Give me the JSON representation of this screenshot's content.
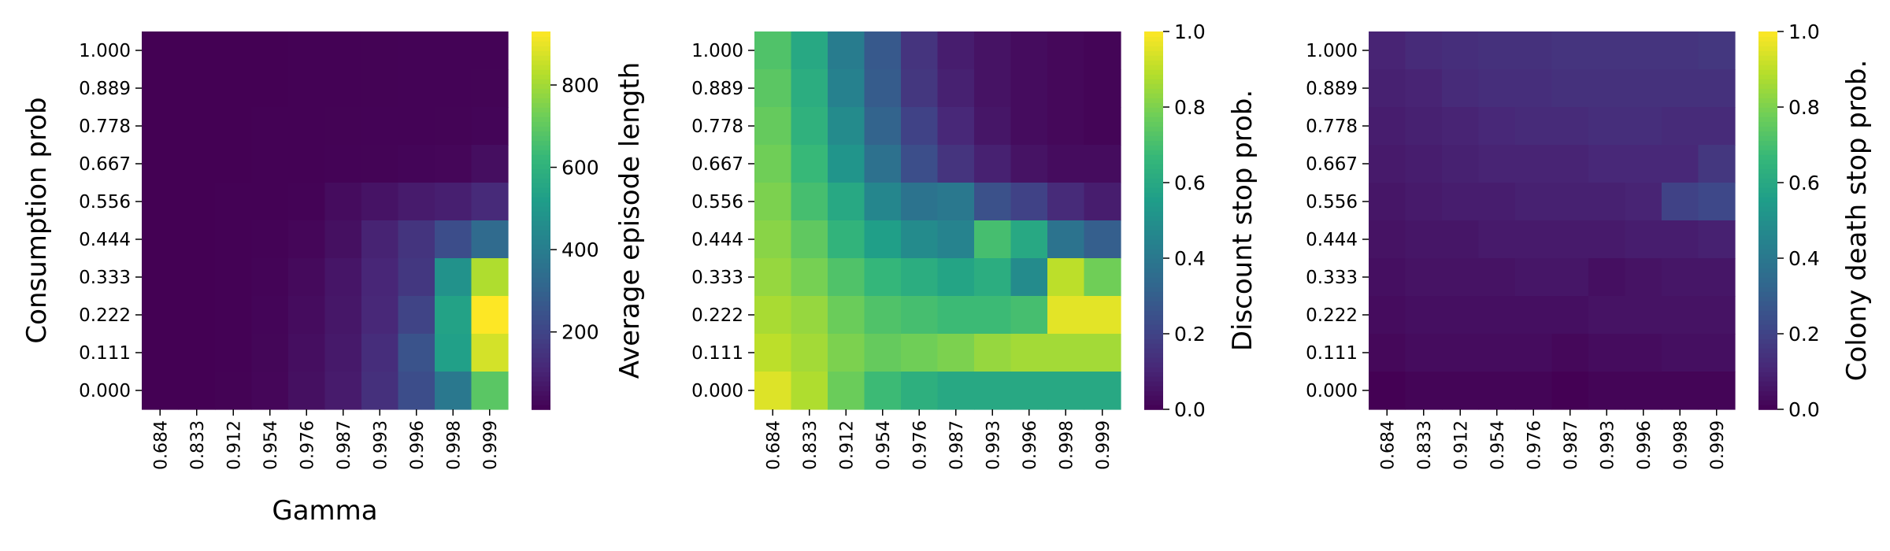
{
  "chart_data": [
    {
      "type": "heatmap",
      "xlabel": "Gamma",
      "ylabel": "Consumption prob",
      "x_categories": [
        "0.684",
        "0.833",
        "0.912",
        "0.954",
        "0.976",
        "0.987",
        "0.993",
        "0.996",
        "0.998",
        "0.999"
      ],
      "y_categories": [
        "1.000",
        "0.889",
        "0.778",
        "0.667",
        "0.556",
        "0.444",
        "0.333",
        "0.222",
        "0.111",
        "0.000"
      ],
      "values": [
        [
          12,
          12,
          13,
          13,
          14,
          15,
          16,
          17,
          18,
          18
        ],
        [
          12,
          12,
          13,
          13,
          14,
          15,
          16,
          17,
          18,
          19
        ],
        [
          12,
          12,
          13,
          14,
          15,
          16,
          17,
          18,
          19,
          22
        ],
        [
          12,
          13,
          13,
          14,
          15,
          17,
          19,
          22,
          25,
          45
        ],
        [
          12,
          13,
          14,
          15,
          18,
          40,
          60,
          80,
          90,
          120
        ],
        [
          12,
          13,
          14,
          17,
          25,
          50,
          100,
          150,
          230,
          330
        ],
        [
          12,
          13,
          15,
          20,
          35,
          65,
          110,
          160,
          480,
          820
        ],
        [
          12,
          13,
          15,
          22,
          40,
          70,
          115,
          200,
          540,
          930
        ],
        [
          12,
          13,
          15,
          24,
          45,
          75,
          130,
          250,
          530,
          870
        ],
        [
          12,
          13,
          16,
          25,
          50,
          80,
          140,
          230,
          380,
          690
        ]
      ],
      "colorbar": {
        "label": "Average episode length",
        "min": 12,
        "max": 930,
        "ticks": [
          "200",
          "400",
          "600",
          "800"
        ],
        "tick_values": [
          200,
          400,
          600,
          800
        ]
      }
    },
    {
      "type": "heatmap",
      "xlabel": "",
      "ylabel": "",
      "x_categories": [
        "0.684",
        "0.833",
        "0.912",
        "0.954",
        "0.976",
        "0.987",
        "0.993",
        "0.996",
        "0.998",
        "0.999"
      ],
      "y_categories": [
        "1.000",
        "0.889",
        "0.778",
        "0.667",
        "0.556",
        "0.444",
        "0.333",
        "0.222",
        "0.111",
        "0.000"
      ],
      "values": [
        [
          0.72,
          0.6,
          0.42,
          0.28,
          0.15,
          0.08,
          0.05,
          0.03,
          0.02,
          0.01
        ],
        [
          0.74,
          0.62,
          0.44,
          0.29,
          0.16,
          0.09,
          0.05,
          0.03,
          0.02,
          0.01
        ],
        [
          0.76,
          0.64,
          0.48,
          0.32,
          0.2,
          0.11,
          0.06,
          0.03,
          0.02,
          0.01
        ],
        [
          0.78,
          0.67,
          0.52,
          0.37,
          0.24,
          0.15,
          0.09,
          0.05,
          0.03,
          0.03
        ],
        [
          0.8,
          0.7,
          0.6,
          0.46,
          0.38,
          0.4,
          0.25,
          0.2,
          0.12,
          0.08
        ],
        [
          0.82,
          0.75,
          0.65,
          0.56,
          0.48,
          0.45,
          0.7,
          0.6,
          0.38,
          0.3
        ],
        [
          0.84,
          0.79,
          0.72,
          0.66,
          0.62,
          0.58,
          0.62,
          0.48,
          0.9,
          0.78
        ],
        [
          0.87,
          0.84,
          0.77,
          0.72,
          0.7,
          0.68,
          0.68,
          0.7,
          0.96,
          0.96
        ],
        [
          0.9,
          0.86,
          0.8,
          0.76,
          0.78,
          0.8,
          0.84,
          0.86,
          0.86,
          0.86
        ],
        [
          0.95,
          0.88,
          0.77,
          0.68,
          0.63,
          0.6,
          0.6,
          0.6,
          0.6,
          0.6
        ]
      ],
      "colorbar": {
        "label": "Discount stop prob.",
        "min": 0.0,
        "max": 1.0,
        "ticks": [
          "0.0",
          "0.2",
          "0.4",
          "0.6",
          "0.8",
          "1.0"
        ],
        "tick_values": [
          0.0,
          0.2,
          0.4,
          0.6,
          0.8,
          1.0
        ]
      }
    },
    {
      "type": "heatmap",
      "xlabel": "",
      "ylabel": "",
      "x_categories": [
        "0.684",
        "0.833",
        "0.912",
        "0.954",
        "0.976",
        "0.987",
        "0.993",
        "0.996",
        "0.998",
        "0.999"
      ],
      "y_categories": [
        "1.000",
        "0.889",
        "0.778",
        "0.667",
        "0.556",
        "0.444",
        "0.333",
        "0.222",
        "0.111",
        "0.000"
      ],
      "values": [
        [
          0.1,
          0.12,
          0.13,
          0.14,
          0.14,
          0.15,
          0.15,
          0.15,
          0.15,
          0.16
        ],
        [
          0.09,
          0.1,
          0.12,
          0.13,
          0.13,
          0.14,
          0.14,
          0.14,
          0.14,
          0.14
        ],
        [
          0.08,
          0.09,
          0.1,
          0.11,
          0.12,
          0.12,
          0.13,
          0.13,
          0.12,
          0.12
        ],
        [
          0.07,
          0.08,
          0.09,
          0.1,
          0.1,
          0.1,
          0.11,
          0.11,
          0.11,
          0.16
        ],
        [
          0.06,
          0.07,
          0.08,
          0.08,
          0.09,
          0.09,
          0.09,
          0.1,
          0.2,
          0.22
        ],
        [
          0.05,
          0.06,
          0.06,
          0.07,
          0.07,
          0.07,
          0.07,
          0.08,
          0.08,
          0.09
        ],
        [
          0.04,
          0.05,
          0.05,
          0.05,
          0.06,
          0.06,
          0.04,
          0.05,
          0.06,
          0.06
        ],
        [
          0.03,
          0.04,
          0.04,
          0.04,
          0.04,
          0.04,
          0.05,
          0.05,
          0.05,
          0.05
        ],
        [
          0.02,
          0.03,
          0.03,
          0.03,
          0.03,
          0.02,
          0.03,
          0.03,
          0.04,
          0.04
        ],
        [
          0.0,
          0.01,
          0.01,
          0.01,
          0.01,
          0.0,
          0.01,
          0.01,
          0.01,
          0.01
        ]
      ],
      "colorbar": {
        "label": "Colony death stop prob.",
        "min": 0.0,
        "max": 1.0,
        "ticks": [
          "0.0",
          "0.2",
          "0.4",
          "0.6",
          "0.8",
          "1.0"
        ],
        "tick_values": [
          0.0,
          0.2,
          0.4,
          0.6,
          0.8,
          1.0
        ]
      }
    }
  ],
  "colormap": [
    "#440154",
    "#482878",
    "#3e4989",
    "#31688e",
    "#26828e",
    "#1f9e89",
    "#35b779",
    "#6ece58",
    "#b5de2b",
    "#fde725"
  ]
}
